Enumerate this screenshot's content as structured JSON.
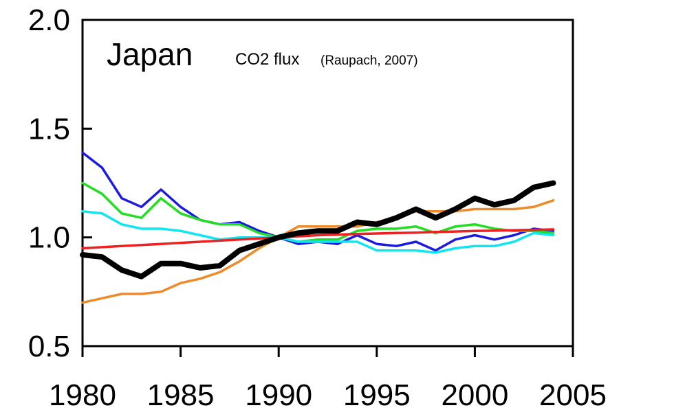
{
  "chart_data": {
    "type": "line",
    "title": "Japan",
    "subtitle_main": "CO2 flux",
    "subtitle_source": "(Raupach, 2007)",
    "xlabel": "",
    "ylabel": "",
    "xlim": [
      1980,
      2005
    ],
    "ylim": [
      0.5,
      2.0
    ],
    "x_ticks": [
      1980,
      1985,
      1990,
      1995,
      2000,
      2005
    ],
    "y_ticks": [
      "0.5",
      "1.0",
      "1.5",
      "2.0"
    ],
    "grid": false,
    "legend": "none",
    "series": [
      {
        "color": "#ee8a2a",
        "x": [
          1980,
          1981,
          1982,
          1983,
          1984,
          1985,
          1986,
          1987,
          1988,
          1989,
          1990,
          1991,
          1992,
          1993,
          1994,
          1995,
          1996,
          1997,
          1998,
          1999,
          2000,
          2001,
          2002,
          2003,
          2004
        ],
        "values": [
          0.7,
          0.72,
          0.74,
          0.74,
          0.75,
          0.79,
          0.81,
          0.84,
          0.89,
          0.95,
          1.0,
          1.05,
          1.05,
          1.05,
          1.05,
          1.07,
          1.09,
          1.12,
          1.12,
          1.12,
          1.13,
          1.13,
          1.13,
          1.14,
          1.17
        ]
      },
      {
        "color": "#1a1ae0",
        "x": [
          1980,
          1981,
          1982,
          1983,
          1984,
          1985,
          1986,
          1987,
          1988,
          1989,
          1990,
          1991,
          1992,
          1993,
          1994,
          1995,
          1996,
          1997,
          1998,
          1999,
          2000,
          2001,
          2002,
          2003,
          2004
        ],
        "values": [
          1.39,
          1.32,
          1.18,
          1.14,
          1.22,
          1.14,
          1.08,
          1.06,
          1.07,
          1.03,
          1.0,
          0.97,
          0.98,
          0.97,
          1.01,
          0.97,
          0.96,
          0.98,
          0.94,
          0.99,
          1.01,
          0.99,
          1.01,
          1.04,
          1.03
        ]
      },
      {
        "color": "#22dd22",
        "x": [
          1980,
          1981,
          1982,
          1983,
          1984,
          1985,
          1986,
          1987,
          1988,
          1989,
          1990,
          1991,
          1992,
          1993,
          1994,
          1995,
          1996,
          1997,
          1998,
          1999,
          2000,
          2001,
          2002,
          2003,
          2004
        ],
        "values": [
          1.25,
          1.2,
          1.11,
          1.09,
          1.18,
          1.11,
          1.08,
          1.06,
          1.06,
          1.02,
          1.0,
          0.98,
          0.99,
          0.99,
          1.03,
          1.04,
          1.04,
          1.05,
          1.02,
          1.05,
          1.06,
          1.04,
          1.03,
          1.03,
          1.02
        ]
      },
      {
        "color": "#11e6f0",
        "x": [
          1980,
          1981,
          1982,
          1983,
          1984,
          1985,
          1986,
          1987,
          1988,
          1989,
          1990,
          1991,
          1992,
          1993,
          1994,
          1995,
          1996,
          1997,
          1998,
          1999,
          2000,
          2001,
          2002,
          2003,
          2004
        ],
        "values": [
          1.12,
          1.11,
          1.06,
          1.04,
          1.04,
          1.03,
          1.01,
          0.99,
          1.0,
          1.0,
          1.0,
          0.98,
          0.98,
          0.98,
          0.98,
          0.94,
          0.94,
          0.94,
          0.93,
          0.95,
          0.96,
          0.96,
          0.98,
          1.02,
          1.01
        ]
      },
      {
        "color": "#ee2020",
        "x": [
          1980,
          1981,
          1982,
          1983,
          1984,
          1985,
          1986,
          1987,
          1988,
          1989,
          1990,
          1991,
          1992,
          1993,
          1994,
          1995,
          1996,
          1997,
          1998,
          1999,
          2000,
          2001,
          2002,
          2003,
          2004
        ],
        "values": [
          0.95,
          0.955,
          0.96,
          0.965,
          0.97,
          0.975,
          0.98,
          0.985,
          0.99,
          0.995,
          1.0,
          1.005,
          1.01,
          1.013,
          1.016,
          1.018,
          1.02,
          1.022,
          1.025,
          1.027,
          1.03,
          1.031,
          1.033,
          1.035,
          1.037
        ]
      },
      {
        "color": "#000000",
        "thick": true,
        "x": [
          1980,
          1981,
          1982,
          1983,
          1984,
          1985,
          1986,
          1987,
          1988,
          1989,
          1990,
          1991,
          1992,
          1993,
          1994,
          1995,
          1996,
          1997,
          1998,
          1999,
          2000,
          2001,
          2002,
          2003,
          2004
        ],
        "values": [
          0.92,
          0.91,
          0.85,
          0.82,
          0.88,
          0.88,
          0.86,
          0.87,
          0.94,
          0.97,
          1.0,
          1.02,
          1.03,
          1.03,
          1.07,
          1.06,
          1.09,
          1.13,
          1.09,
          1.13,
          1.18,
          1.15,
          1.17,
          1.23,
          1.25
        ]
      }
    ]
  }
}
